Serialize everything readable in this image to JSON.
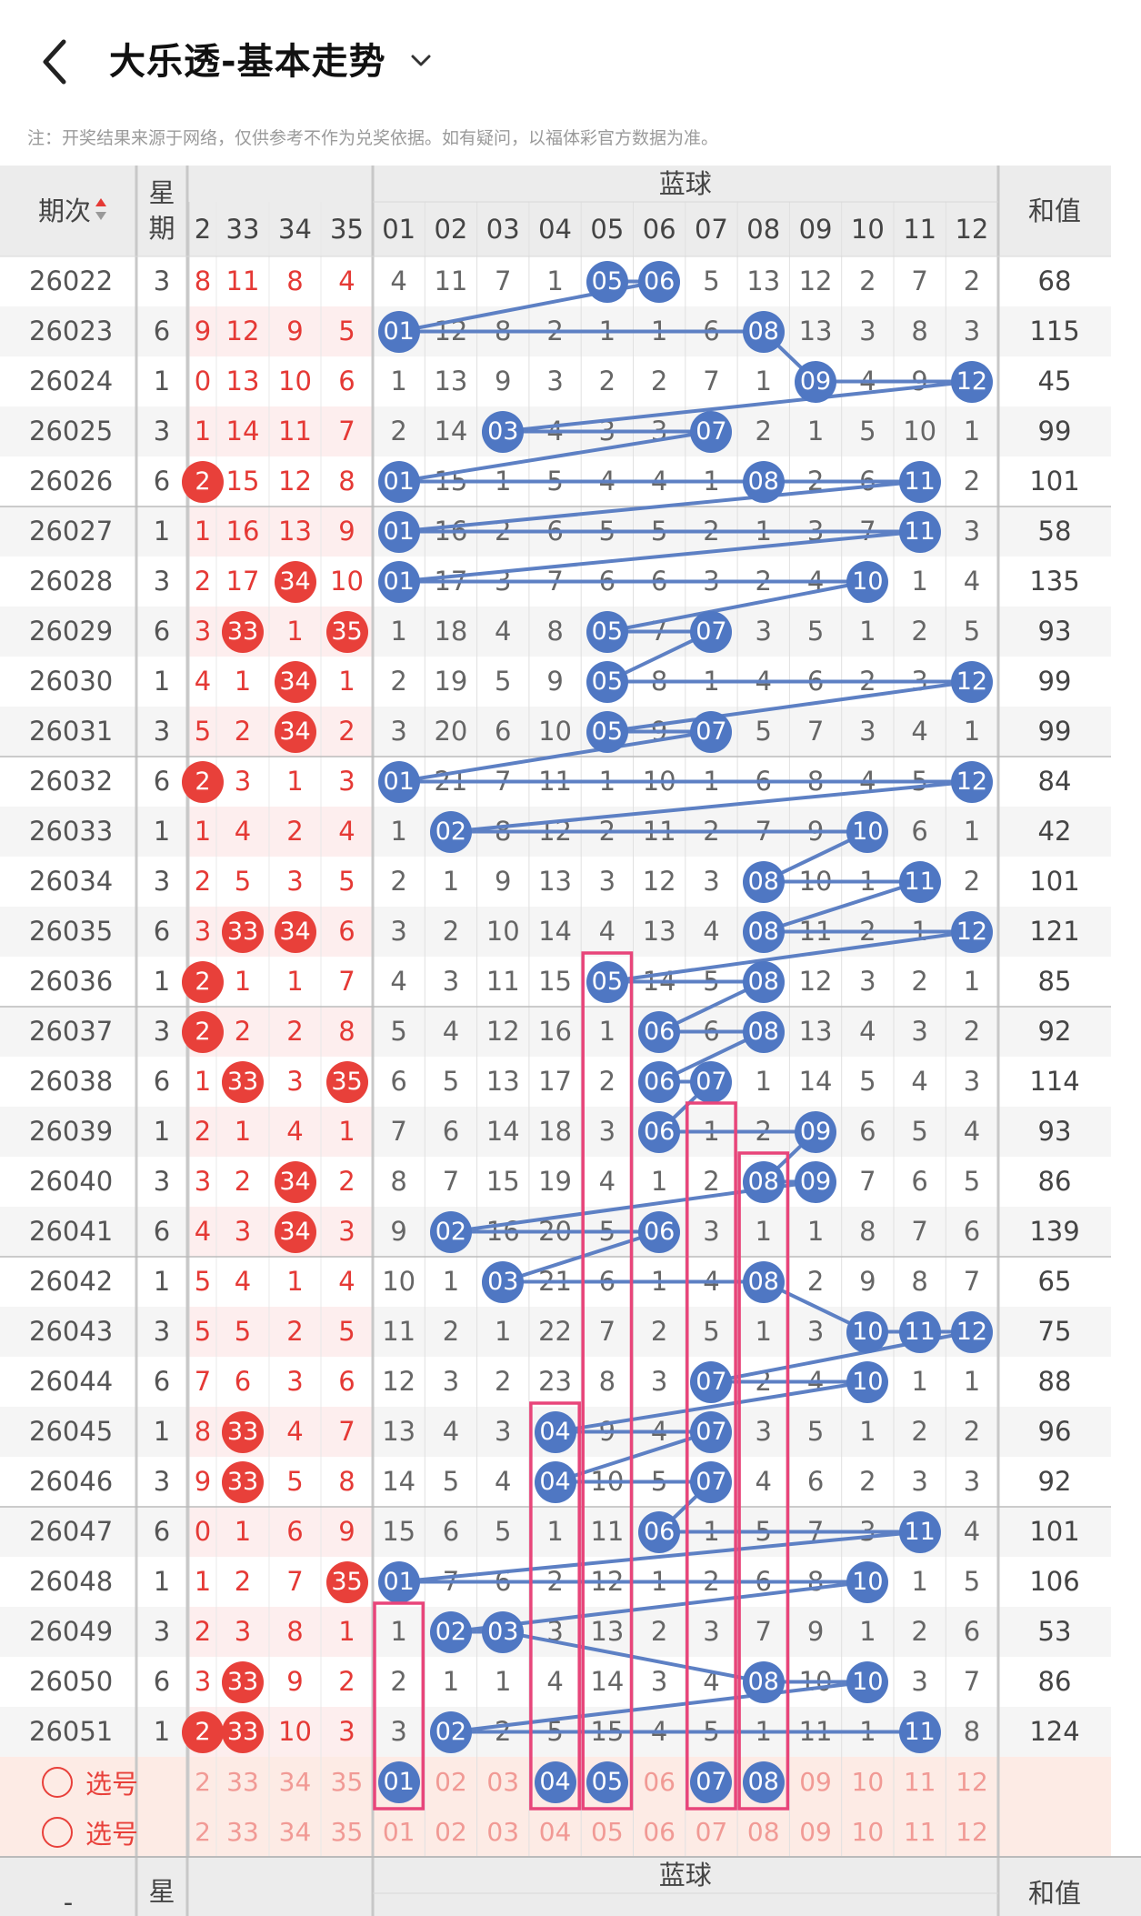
{
  "header": {
    "title": "大乐透-基本走势"
  },
  "notice": "注：开奖结果来源于网络，仅供参考不作为兑奖依据。如有疑问，以福体彩官方数据为准。",
  "columns": {
    "period": "期次",
    "week": "星期",
    "blue_group": "蓝球",
    "sum": "和值",
    "front_partial": [
      "2",
      "33",
      "34",
      "35"
    ],
    "blue": [
      "01",
      "02",
      "03",
      "04",
      "05",
      "06",
      "07",
      "08",
      "09",
      "10",
      "11",
      "12"
    ],
    "front_first_visible": "2"
  },
  "rows": [
    {
      "period": "26022",
      "week": "3",
      "front": [
        [
          "8",
          0
        ],
        [
          "11",
          0
        ],
        [
          "8",
          0
        ],
        [
          "4",
          0
        ]
      ],
      "blue": [
        "4",
        "11",
        "7",
        "1",
        "05",
        "06",
        "5",
        "13",
        "12",
        "2",
        "7",
        "2"
      ],
      "sum": "68"
    },
    {
      "period": "26023",
      "week": "6",
      "front": [
        [
          "9",
          0
        ],
        [
          "12",
          0
        ],
        [
          "9",
          0
        ],
        [
          "5",
          0
        ]
      ],
      "blue": [
        "01",
        "12",
        "8",
        "2",
        "1",
        "1",
        "6",
        "08",
        "13",
        "3",
        "8",
        "3"
      ],
      "sum": "115"
    },
    {
      "period": "26024",
      "week": "1",
      "front": [
        [
          "0",
          0
        ],
        [
          "13",
          0
        ],
        [
          "10",
          0
        ],
        [
          "6",
          0
        ]
      ],
      "blue": [
        "1",
        "13",
        "9",
        "3",
        "2",
        "2",
        "7",
        "1",
        "09",
        "4",
        "9",
        "12"
      ],
      "sum": "45"
    },
    {
      "period": "26025",
      "week": "3",
      "front": [
        [
          "1",
          0
        ],
        [
          "14",
          0
        ],
        [
          "11",
          0
        ],
        [
          "7",
          0
        ]
      ],
      "blue": [
        "2",
        "14",
        "03",
        "4",
        "3",
        "3",
        "07",
        "2",
        "1",
        "5",
        "10",
        "1"
      ],
      "sum": "99"
    },
    {
      "period": "26026",
      "week": "6",
      "front": [
        [
          "2",
          1
        ],
        [
          "15",
          0
        ],
        [
          "12",
          0
        ],
        [
          "8",
          0
        ]
      ],
      "blue": [
        "01",
        "15",
        "1",
        "5",
        "4",
        "4",
        "1",
        "08",
        "2",
        "6",
        "11",
        "2"
      ],
      "sum": "101"
    },
    {
      "period": "26027",
      "week": "1",
      "front": [
        [
          "1",
          0
        ],
        [
          "16",
          0
        ],
        [
          "13",
          0
        ],
        [
          "9",
          0
        ]
      ],
      "blue": [
        "01",
        "16",
        "2",
        "6",
        "5",
        "5",
        "2",
        "1",
        "3",
        "7",
        "11",
        "3"
      ],
      "sum": "58"
    },
    {
      "period": "26028",
      "week": "3",
      "front": [
        [
          "2",
          0
        ],
        [
          "17",
          0
        ],
        [
          "34",
          1
        ],
        [
          "10",
          0
        ]
      ],
      "blue": [
        "01",
        "17",
        "3",
        "7",
        "6",
        "6",
        "3",
        "2",
        "4",
        "10",
        "1",
        "4"
      ],
      "sum": "135"
    },
    {
      "period": "26029",
      "week": "6",
      "front": [
        [
          "3",
          0
        ],
        [
          "33",
          1
        ],
        [
          "1",
          0
        ],
        [
          "35",
          1
        ]
      ],
      "blue": [
        "1",
        "18",
        "4",
        "8",
        "05",
        "7",
        "07",
        "3",
        "5",
        "1",
        "2",
        "5"
      ],
      "sum": "93"
    },
    {
      "period": "26030",
      "week": "1",
      "front": [
        [
          "4",
          0
        ],
        [
          "1",
          0
        ],
        [
          "34",
          1
        ],
        [
          "1",
          0
        ]
      ],
      "blue": [
        "2",
        "19",
        "5",
        "9",
        "05",
        "8",
        "1",
        "4",
        "6",
        "2",
        "3",
        "12"
      ],
      "sum": "99"
    },
    {
      "period": "26031",
      "week": "3",
      "front": [
        [
          "5",
          0
        ],
        [
          "2",
          0
        ],
        [
          "34",
          1
        ],
        [
          "2",
          0
        ]
      ],
      "blue": [
        "3",
        "20",
        "6",
        "10",
        "05",
        "9",
        "07",
        "5",
        "7",
        "3",
        "4",
        "1"
      ],
      "sum": "99"
    },
    {
      "period": "26032",
      "week": "6",
      "front": [
        [
          "2",
          1
        ],
        [
          "3",
          0
        ],
        [
          "1",
          0
        ],
        [
          "3",
          0
        ]
      ],
      "blue": [
        "01",
        "21",
        "7",
        "11",
        "1",
        "10",
        "1",
        "6",
        "8",
        "4",
        "5",
        "12"
      ],
      "sum": "84"
    },
    {
      "period": "26033",
      "week": "1",
      "front": [
        [
          "1",
          0
        ],
        [
          "4",
          0
        ],
        [
          "2",
          0
        ],
        [
          "4",
          0
        ]
      ],
      "blue": [
        "1",
        "02",
        "8",
        "12",
        "2",
        "11",
        "2",
        "7",
        "9",
        "10",
        "6",
        "1"
      ],
      "sum": "42"
    },
    {
      "period": "26034",
      "week": "3",
      "front": [
        [
          "2",
          0
        ],
        [
          "5",
          0
        ],
        [
          "3",
          0
        ],
        [
          "5",
          0
        ]
      ],
      "blue": [
        "2",
        "1",
        "9",
        "13",
        "3",
        "12",
        "3",
        "08",
        "10",
        "1",
        "11",
        "2"
      ],
      "sum": "101"
    },
    {
      "period": "26035",
      "week": "6",
      "front": [
        [
          "3",
          0
        ],
        [
          "33",
          1
        ],
        [
          "34",
          1
        ],
        [
          "6",
          0
        ]
      ],
      "blue": [
        "3",
        "2",
        "10",
        "14",
        "4",
        "13",
        "4",
        "08",
        "11",
        "2",
        "1",
        "12"
      ],
      "sum": "121"
    },
    {
      "period": "26036",
      "week": "1",
      "front": [
        [
          "2",
          1
        ],
        [
          "1",
          0
        ],
        [
          "1",
          0
        ],
        [
          "7",
          0
        ]
      ],
      "blue": [
        "4",
        "3",
        "11",
        "15",
        "05",
        "14",
        "5",
        "08",
        "12",
        "3",
        "2",
        "1"
      ],
      "sum": "85"
    },
    {
      "period": "26037",
      "week": "3",
      "front": [
        [
          "2",
          1
        ],
        [
          "2",
          0
        ],
        [
          "2",
          0
        ],
        [
          "8",
          0
        ]
      ],
      "blue": [
        "5",
        "4",
        "12",
        "16",
        "1",
        "06",
        "6",
        "08",
        "13",
        "4",
        "3",
        "2"
      ],
      "sum": "92"
    },
    {
      "period": "26038",
      "week": "6",
      "front": [
        [
          "1",
          0
        ],
        [
          "33",
          1
        ],
        [
          "3",
          0
        ],
        [
          "35",
          1
        ]
      ],
      "blue": [
        "6",
        "5",
        "13",
        "17",
        "2",
        "06",
        "07",
        "1",
        "14",
        "5",
        "4",
        "3"
      ],
      "sum": "114"
    },
    {
      "period": "26039",
      "week": "1",
      "front": [
        [
          "2",
          0
        ],
        [
          "1",
          0
        ],
        [
          "4",
          0
        ],
        [
          "1",
          0
        ]
      ],
      "blue": [
        "7",
        "6",
        "14",
        "18",
        "3",
        "06",
        "1",
        "2",
        "09",
        "6",
        "5",
        "4"
      ],
      "sum": "93"
    },
    {
      "period": "26040",
      "week": "3",
      "front": [
        [
          "3",
          0
        ],
        [
          "2",
          0
        ],
        [
          "34",
          1
        ],
        [
          "2",
          0
        ]
      ],
      "blue": [
        "8",
        "7",
        "15",
        "19",
        "4",
        "1",
        "2",
        "08",
        "09",
        "7",
        "6",
        "5"
      ],
      "sum": "86"
    },
    {
      "period": "26041",
      "week": "6",
      "front": [
        [
          "4",
          0
        ],
        [
          "3",
          0
        ],
        [
          "34",
          1
        ],
        [
          "3",
          0
        ]
      ],
      "blue": [
        "9",
        "02",
        "16",
        "20",
        "5",
        "06",
        "3",
        "1",
        "1",
        "8",
        "7",
        "6"
      ],
      "sum": "139"
    },
    {
      "period": "26042",
      "week": "1",
      "front": [
        [
          "5",
          0
        ],
        [
          "4",
          0
        ],
        [
          "1",
          0
        ],
        [
          "4",
          0
        ]
      ],
      "blue": [
        "10",
        "1",
        "03",
        "21",
        "6",
        "1",
        "4",
        "08",
        "2",
        "9",
        "8",
        "7"
      ],
      "sum": "65"
    },
    {
      "period": "26043",
      "week": "3",
      "front": [
        [
          "5",
          0
        ],
        [
          "5",
          0
        ],
        [
          "2",
          0
        ],
        [
          "5",
          0
        ]
      ],
      "blue": [
        "11",
        "2",
        "1",
        "22",
        "7",
        "2",
        "5",
        "1",
        "3",
        "10",
        "11",
        "12"
      ],
      "sum": "75"
    },
    {
      "period": "26044",
      "week": "6",
      "front": [
        [
          "7",
          0
        ],
        [
          "6",
          0
        ],
        [
          "3",
          0
        ],
        [
          "6",
          0
        ]
      ],
      "blue": [
        "12",
        "3",
        "2",
        "23",
        "8",
        "3",
        "07",
        "2",
        "4",
        "10",
        "1",
        "1"
      ],
      "sum": "88"
    },
    {
      "period": "26045",
      "week": "1",
      "front": [
        [
          "8",
          0
        ],
        [
          "33",
          1
        ],
        [
          "4",
          0
        ],
        [
          "7",
          0
        ]
      ],
      "blue": [
        "13",
        "4",
        "3",
        "04",
        "9",
        "4",
        "07",
        "3",
        "5",
        "1",
        "2",
        "2"
      ],
      "sum": "96"
    },
    {
      "period": "26046",
      "week": "3",
      "front": [
        [
          "9",
          0
        ],
        [
          "33",
          1
        ],
        [
          "5",
          0
        ],
        [
          "8",
          0
        ]
      ],
      "blue": [
        "14",
        "5",
        "4",
        "04",
        "10",
        "5",
        "07",
        "4",
        "6",
        "2",
        "3",
        "3"
      ],
      "sum": "92"
    },
    {
      "period": "26047",
      "week": "6",
      "front": [
        [
          "0",
          0
        ],
        [
          "1",
          0
        ],
        [
          "6",
          0
        ],
        [
          "9",
          0
        ]
      ],
      "blue": [
        "15",
        "6",
        "5",
        "1",
        "11",
        "06",
        "1",
        "5",
        "7",
        "3",
        "11",
        "4"
      ],
      "sum": "101"
    },
    {
      "period": "26048",
      "week": "1",
      "front": [
        [
          "1",
          0
        ],
        [
          "2",
          0
        ],
        [
          "7",
          0
        ],
        [
          "35",
          1
        ]
      ],
      "blue": [
        "01",
        "7",
        "6",
        "2",
        "12",
        "1",
        "2",
        "6",
        "8",
        "10",
        "1",
        "5"
      ],
      "sum": "106"
    },
    {
      "period": "26049",
      "week": "3",
      "front": [
        [
          "2",
          0
        ],
        [
          "3",
          0
        ],
        [
          "8",
          0
        ],
        [
          "1",
          0
        ]
      ],
      "blue": [
        "1",
        "02",
        "03",
        "3",
        "13",
        "2",
        "3",
        "7",
        "9",
        "1",
        "2",
        "6"
      ],
      "sum": "53"
    },
    {
      "period": "26050",
      "week": "6",
      "front": [
        [
          "3",
          0
        ],
        [
          "33",
          1
        ],
        [
          "9",
          0
        ],
        [
          "2",
          0
        ]
      ],
      "blue": [
        "2",
        "1",
        "1",
        "4",
        "14",
        "3",
        "4",
        "08",
        "10",
        "10",
        "3",
        "7"
      ],
      "sum": "86"
    },
    {
      "period": "26051",
      "week": "1",
      "front": [
        [
          "2",
          1
        ],
        [
          "33",
          1
        ],
        [
          "10",
          0
        ],
        [
          "3",
          0
        ]
      ],
      "blue": [
        "3",
        "02",
        "2",
        "5",
        "15",
        "4",
        "5",
        "1",
        "11",
        "1",
        "11",
        "8"
      ],
      "sum": "124"
    }
  ],
  "picker": {
    "label": "选号",
    "front": [
      "2",
      "33",
      "34",
      "35"
    ],
    "blue": [
      "01",
      "02",
      "03",
      "04",
      "05",
      "06",
      "07",
      "08",
      "09",
      "10",
      "11",
      "12"
    ],
    "selected_blue": [
      "01",
      "04",
      "05",
      "07",
      "08"
    ]
  },
  "footer_header": {
    "period": "-",
    "week": "星期",
    "blue_group": "蓝球",
    "sum": "和值"
  },
  "colors": {
    "red": "#e8403a",
    "blue_ball": "#4f77c3",
    "line": "#5d80c4",
    "highlight": "#e8457a",
    "odd_row": "#f5f5f5",
    "header_bg": "#ececec",
    "pink_bg": "#fdebe5"
  }
}
